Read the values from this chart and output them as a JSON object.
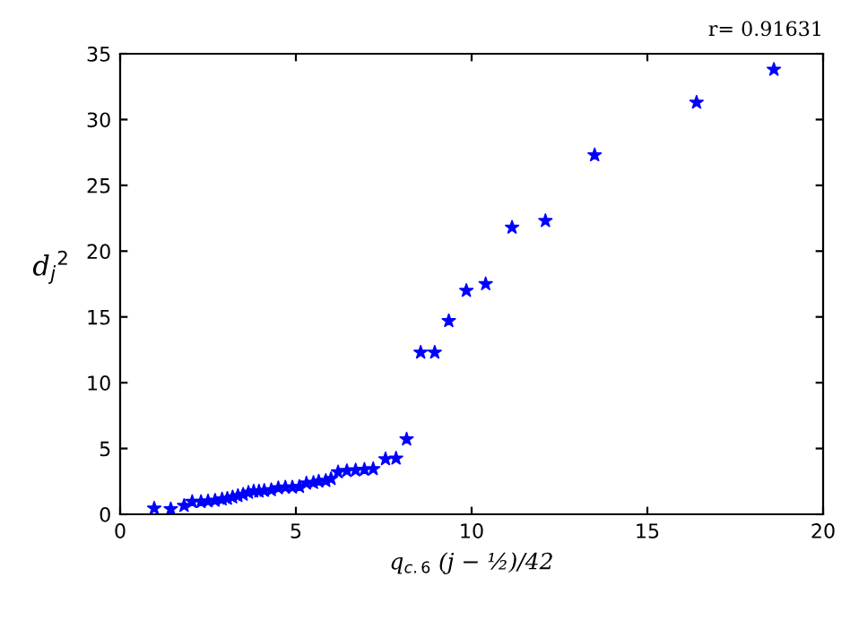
{
  "chart_data": {
    "type": "scatter",
    "xlabel": "q$_{c.6}$ (j − ½)/42",
    "ylabel": "d$_{j}$$^{2}$",
    "annotations": [
      "r= 0.91631"
    ],
    "x": [
      0.97,
      1.44,
      1.82,
      2.05,
      2.3,
      2.5,
      2.7,
      2.9,
      3.05,
      3.2,
      3.35,
      3.5,
      3.65,
      3.8,
      3.95,
      4.1,
      4.3,
      4.5,
      4.7,
      4.9,
      5.1,
      5.3,
      5.5,
      5.65,
      5.85,
      6.0,
      6.2,
      6.45,
      6.7,
      6.95,
      7.2,
      7.55,
      7.85,
      8.15,
      8.55,
      8.95,
      9.35,
      9.85,
      10.4,
      11.15,
      12.1,
      13.5,
      16.4,
      18.6
    ],
    "series": [
      {
        "color": "#0000ff",
        "values": [
          0.45,
          0.4,
          0.65,
          0.95,
          0.95,
          1.0,
          1.05,
          1.15,
          1.2,
          1.3,
          1.4,
          1.5,
          1.65,
          1.75,
          1.75,
          1.8,
          1.85,
          2.0,
          2.05,
          2.05,
          2.1,
          2.35,
          2.4,
          2.5,
          2.55,
          2.7,
          3.2,
          3.3,
          3.35,
          3.4,
          3.45,
          4.2,
          4.25,
          5.7,
          12.3,
          12.3,
          14.7,
          17.0,
          17.5,
          21.8,
          22.3,
          27.3,
          31.3,
          33.8
        ]
      }
    ],
    "xlim": [
      0,
      20
    ],
    "xticks": [
      0,
      5,
      10,
      15,
      20
    ],
    "ylim": [
      0,
      35
    ],
    "yticks": [
      0,
      5,
      10,
      15,
      20,
      25,
      30,
      35
    ],
    "marker": "star",
    "grid": false,
    "legend": false
  }
}
